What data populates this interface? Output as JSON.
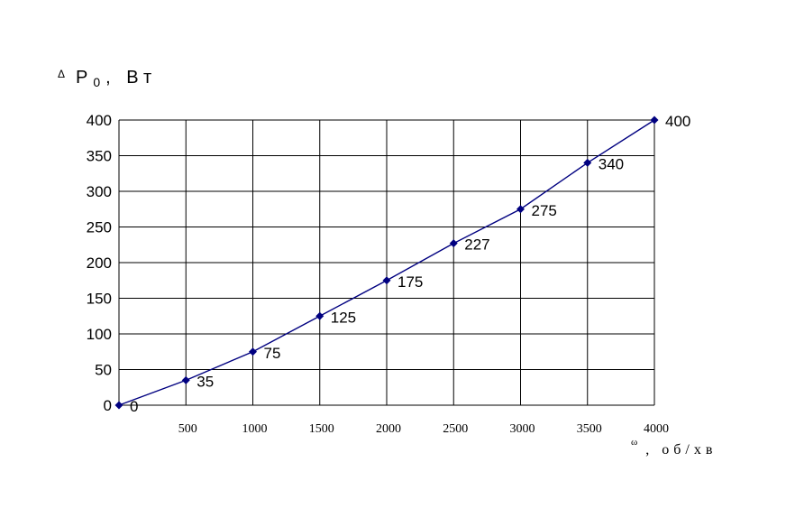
{
  "chart_data": {
    "type": "line",
    "ylabel": "ΔP₀, Вт",
    "ylabel_parts": {
      "delta": "Δ",
      "main": "Р",
      "sub": "0",
      "rest": ", Вт"
    },
    "xlabel": "ω, об/хв",
    "xlabel_parts": {
      "symbol": "ω",
      "rest": ", об/хв"
    },
    "x": [
      0,
      500,
      1000,
      1500,
      2000,
      2500,
      3000,
      3500,
      4000
    ],
    "x_tick_labels": [
      "500",
      "1000",
      "1500",
      "2000",
      "2500",
      "3000",
      "3500",
      "4000"
    ],
    "y_ticks": [
      0,
      50,
      100,
      150,
      200,
      250,
      300,
      350,
      400
    ],
    "series": [
      {
        "values": [
          0,
          35,
          75,
          125,
          175,
          227,
          275,
          340,
          400
        ],
        "color": "#000080"
      }
    ],
    "data_labels": [
      "0",
      "35",
      "75",
      "125",
      "175",
      "227",
      "275",
      "340",
      "400"
    ],
    "xlim": [
      0,
      4000
    ],
    "ylim": [
      0,
      400
    ],
    "grid": true
  }
}
